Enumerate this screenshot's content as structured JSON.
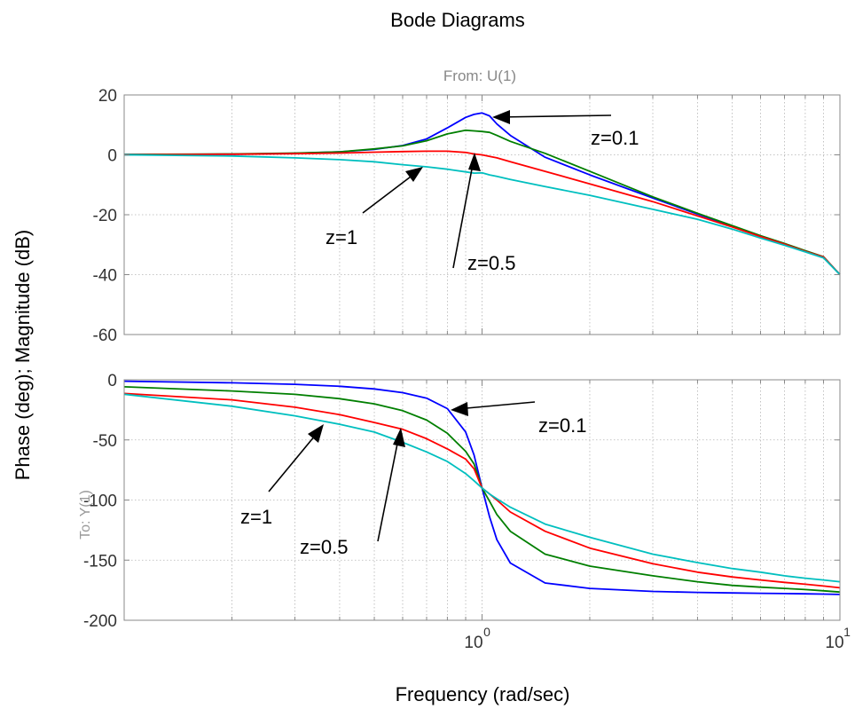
{
  "chart_data": {
    "type": "line",
    "title": "Bode Diagrams",
    "subtitle": "From: U(1)",
    "xlabel": "Frequency (rad/sec)",
    "ylabel": "Phase (deg); Magnitude (dB)",
    "output_label": "To: Y(1)",
    "xscale": "log",
    "xlim": [
      0.1,
      10
    ],
    "grid": true,
    "x": [
      0.1,
      0.2,
      0.3,
      0.4,
      0.5,
      0.6,
      0.7,
      0.8,
      0.9,
      0.95,
      1.0,
      1.05,
      1.1,
      1.2,
      1.5,
      2,
      3,
      4,
      5,
      6,
      7,
      8,
      9,
      10
    ],
    "x_tick_labels": [
      "10",
      "0",
      "10",
      "1"
    ],
    "panels": [
      {
        "name": "Magnitude",
        "ylim": [
          -60,
          20
        ],
        "yticks": [
          "20",
          "0",
          "-20",
          "-40",
          "-60"
        ],
        "series": [
          {
            "name": "z=0.1",
            "color": "#0000ff",
            "values": [
              0.1,
              0.2,
              0.5,
              1.0,
              1.8,
              3.1,
              5.3,
              9.0,
              12.5,
              13.5,
              14.0,
              13.0,
              10.3,
              6.5,
              -0.8,
              -6.7,
              -14.4,
              -19.8,
              -23.8,
              -27.1,
              -29.7,
              -32.1,
              -34.1,
              -40.0
            ]
          },
          {
            "name": "z=0.5",
            "color": "#007f00",
            "values": [
              0.1,
              0.3,
              0.6,
              1.0,
              2.0,
              3.0,
              4.7,
              7.0,
              8.2,
              8.0,
              7.8,
              7.5,
              6.5,
              4.5,
              0.5,
              -5.5,
              -14.0,
              -19.5,
              -23.6,
              -27.0,
              -29.6,
              -32.0,
              -34.0,
              -40.0
            ]
          },
          {
            "name": "z=1",
            "color": "#ff0000",
            "values": [
              0.0,
              0.2,
              0.4,
              0.6,
              0.9,
              1.1,
              1.2,
              1.2,
              0.8,
              0.3,
              0.0,
              -0.5,
              -1.0,
              -2.3,
              -5.5,
              -9.7,
              -15.6,
              -20.4,
              -24.1,
              -27.3,
              -29.8,
              -32.2,
              -34.1,
              -40.0
            ]
          },
          {
            "name": "",
            "color": "#00bfbf",
            "values": [
              0.0,
              -0.4,
              -1.0,
              -1.6,
              -2.3,
              -3.3,
              -4.0,
              -4.8,
              -5.7,
              -6.1,
              -6.0,
              -6.7,
              -7.2,
              -8.2,
              -10.6,
              -13.5,
              -18.2,
              -21.5,
              -24.8,
              -27.8,
              -30.2,
              -32.4,
              -34.4,
              -40.0
            ]
          }
        ]
      },
      {
        "name": "Phase",
        "ylim": [
          -200,
          0
        ],
        "yticks": [
          "0",
          "-50",
          "-100",
          "-150",
          "-200"
        ],
        "series": [
          {
            "name": "z=0.1",
            "color": "#0000ff",
            "values": [
              -1.2,
              -2.5,
              -3.8,
              -5.4,
              -7.6,
              -10.7,
              -15.3,
              -24.0,
              -43.4,
              -62.6,
              -90.0,
              -114.0,
              -133.0,
              -152.4,
              -169.0,
              -173.5,
              -176.0,
              -176.8,
              -177.3,
              -177.6,
              -177.8,
              -178.0,
              -178.2,
              -178.5
            ]
          },
          {
            "name": "z=0.5",
            "color": "#007f00",
            "values": [
              -5.8,
              -9.3,
              -12.1,
              -15.7,
              -20.0,
              -25.7,
              -33.5,
              -44.5,
              -59.5,
              -70.0,
              -90.0,
              -101.0,
              -112.0,
              -126.0,
              -145.0,
              -155.0,
              -163.0,
              -168.0,
              -171.0,
              -172.5,
              -173.5,
              -174.5,
              -175.5,
              -176.5
            ]
          },
          {
            "name": "z=1",
            "color": "#ff0000",
            "values": [
              -11.4,
              -16.7,
              -22.8,
              -29.0,
              -35.5,
              -41.2,
              -49.0,
              -57.5,
              -66.0,
              -74.0,
              -90.0,
              -95.0,
              -100.0,
              -110.0,
              -126.0,
              -140.0,
              -153.0,
              -160.0,
              -164.0,
              -166.5,
              -168.5,
              -170.0,
              -171.5,
              -173.0
            ]
          },
          {
            "name": "",
            "color": "#00bfbf",
            "values": [
              -12.0,
              -22.0,
              -30.0,
              -37.0,
              -43.5,
              -52.0,
              -60.0,
              -68.0,
              -78.0,
              -84.0,
              -90.0,
              -95.0,
              -99.0,
              -106.0,
              -120.0,
              -131.0,
              -145.0,
              -152.0,
              -157.0,
              -160.0,
              -163.0,
              -165.0,
              -166.5,
              -168.0
            ]
          }
        ]
      }
    ],
    "annotations": [
      {
        "text": "z=0.1",
        "panel": 0
      },
      {
        "text": "z=1",
        "panel": 0
      },
      {
        "text": "z=0.5",
        "panel": 0
      },
      {
        "text": "z=0.1",
        "panel": 1
      },
      {
        "text": "z=1",
        "panel": 1
      },
      {
        "text": "z=0.5",
        "panel": 1
      }
    ]
  }
}
